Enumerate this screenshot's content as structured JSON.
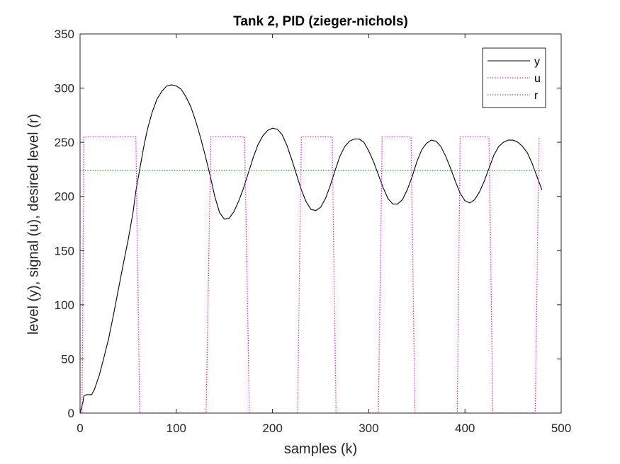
{
  "chart_data": {
    "type": "line",
    "title": "Tank 2, PID (zieger-nichols)",
    "xlabel": "samples (k)",
    "ylabel": "level (y), signal (u), desired level (r)",
    "xlim": [
      0,
      500
    ],
    "ylim": [
      0,
      350
    ],
    "x_ticks": [
      0,
      100,
      200,
      300,
      400,
      500
    ],
    "y_ticks": [
      0,
      50,
      100,
      150,
      200,
      250,
      300,
      350
    ],
    "grid": false,
    "legend_position": "top-right",
    "series": [
      {
        "name": "y",
        "color": "#000000",
        "style": "solid",
        "points": [
          [
            0,
            0
          ],
          [
            3,
            10
          ],
          [
            4,
            16
          ],
          [
            7,
            17
          ],
          [
            12,
            17
          ],
          [
            15,
            22
          ],
          [
            20,
            35
          ],
          [
            25,
            52
          ],
          [
            30,
            70
          ],
          [
            35,
            92
          ],
          [
            40,
            115
          ],
          [
            45,
            138
          ],
          [
            50,
            160
          ],
          [
            55,
            185
          ],
          [
            58,
            205
          ],
          [
            62,
            225
          ],
          [
            66,
            245
          ],
          [
            70,
            262
          ],
          [
            75,
            278
          ],
          [
            80,
            290
          ],
          [
            85,
            297
          ],
          [
            90,
            302
          ],
          [
            95,
            303
          ],
          [
            100,
            302
          ],
          [
            105,
            299
          ],
          [
            110,
            292
          ],
          [
            115,
            283
          ],
          [
            120,
            270
          ],
          [
            125,
            255
          ],
          [
            130,
            238
          ],
          [
            135,
            220
          ],
          [
            140,
            200
          ],
          [
            145,
            185
          ],
          [
            150,
            179
          ],
          [
            155,
            180
          ],
          [
            160,
            186
          ],
          [
            165,
            196
          ],
          [
            170,
            208
          ],
          [
            175,
            222
          ],
          [
            180,
            236
          ],
          [
            185,
            248
          ],
          [
            190,
            256
          ],
          [
            195,
            261
          ],
          [
            200,
            263
          ],
          [
            205,
            262
          ],
          [
            210,
            257
          ],
          [
            215,
            247
          ],
          [
            220,
            234
          ],
          [
            225,
            220
          ],
          [
            230,
            206
          ],
          [
            235,
            195
          ],
          [
            240,
            188
          ],
          [
            245,
            187
          ],
          [
            250,
            190
          ],
          [
            255,
            198
          ],
          [
            260,
            210
          ],
          [
            265,
            224
          ],
          [
            270,
            237
          ],
          [
            275,
            246
          ],
          [
            280,
            251
          ],
          [
            285,
            253
          ],
          [
            290,
            253
          ],
          [
            295,
            250
          ],
          [
            300,
            242
          ],
          [
            305,
            232
          ],
          [
            310,
            220
          ],
          [
            315,
            208
          ],
          [
            320,
            198
          ],
          [
            325,
            193
          ],
          [
            330,
            193
          ],
          [
            335,
            197
          ],
          [
            340,
            206
          ],
          [
            345,
            218
          ],
          [
            350,
            232
          ],
          [
            355,
            243
          ],
          [
            360,
            249
          ],
          [
            365,
            252
          ],
          [
            370,
            251
          ],
          [
            375,
            246
          ],
          [
            380,
            237
          ],
          [
            385,
            226
          ],
          [
            390,
            214
          ],
          [
            395,
            203
          ],
          [
            400,
            196
          ],
          [
            405,
            194
          ],
          [
            410,
            197
          ],
          [
            415,
            204
          ],
          [
            420,
            214
          ],
          [
            425,
            226
          ],
          [
            430,
            238
          ],
          [
            435,
            246
          ],
          [
            440,
            250
          ],
          [
            445,
            252
          ],
          [
            450,
            252
          ],
          [
            455,
            250
          ],
          [
            460,
            246
          ],
          [
            465,
            240
          ],
          [
            470,
            230
          ],
          [
            475,
            218
          ],
          [
            480,
            206
          ]
        ]
      },
      {
        "name": "u",
        "color": "#ff00ff",
        "style": "dotted",
        "points": [
          [
            0,
            0
          ],
          [
            2,
            0
          ],
          [
            4,
            255
          ],
          [
            58,
            255
          ],
          [
            62,
            0
          ],
          [
            131,
            0
          ],
          [
            136,
            255
          ],
          [
            171,
            255
          ],
          [
            176,
            0
          ],
          [
            226,
            0
          ],
          [
            230,
            255
          ],
          [
            262,
            255
          ],
          [
            266,
            0
          ],
          [
            310,
            0
          ],
          [
            314,
            255
          ],
          [
            344,
            255
          ],
          [
            348,
            0
          ],
          [
            392,
            0
          ],
          [
            395,
            255
          ],
          [
            425,
            255
          ],
          [
            429,
            0
          ],
          [
            473,
            0
          ],
          [
            477,
            255
          ]
        ]
      },
      {
        "name": "r",
        "color": "#00aa00",
        "style": "dotted",
        "points": [
          [
            0,
            224
          ],
          [
            480,
            224
          ]
        ]
      }
    ]
  }
}
